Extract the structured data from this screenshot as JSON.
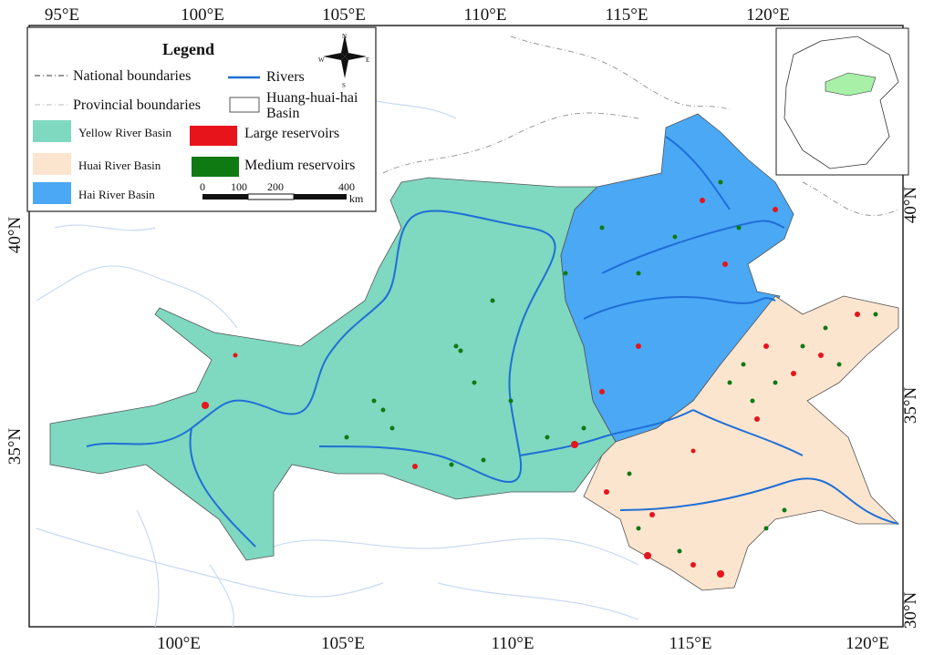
{
  "legend": {
    "title": "Legend",
    "items": [
      "National boundaries",
      "Rivers",
      "Provincial boundaries",
      "Huang-huai-hai Basin",
      "Yellow River Basin",
      "Large reservoirs",
      "Huai River Basin",
      "Medium reservoirs",
      "Hai River Basin"
    ]
  },
  "compass": [
    "N",
    "E",
    "S",
    "W"
  ],
  "scale_bar": {
    "labels": [
      "0",
      "100",
      "200",
      "400"
    ],
    "unit": "km"
  },
  "graticule": {
    "top": [
      "95°E",
      "100°E",
      "105°E",
      "110°E",
      "115°E",
      "120°E"
    ],
    "bottom": [
      "100°E",
      "105°E",
      "110°E",
      "115°E",
      "120°E"
    ],
    "left": [
      "40°N",
      "35°N"
    ],
    "right": [
      "40°N",
      "35°N",
      "30°N"
    ]
  }
}
